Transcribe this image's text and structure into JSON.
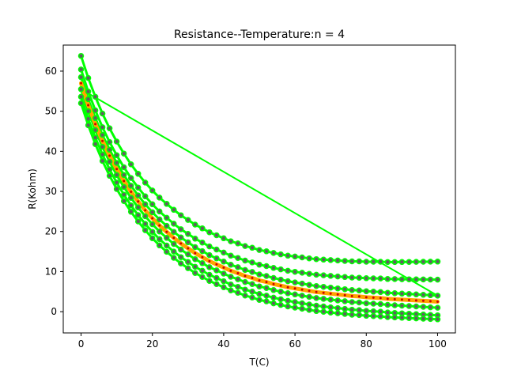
{
  "chart_data": {
    "type": "line",
    "title": "Resistance--Temperature:n = 4",
    "xlabel": "T(C)",
    "ylabel": "R(Kohm)",
    "xlim": [
      -5,
      105
    ],
    "ylim": [
      -5.3,
      66.5
    ],
    "xticks": [
      0,
      20,
      40,
      60,
      80,
      100
    ],
    "yticks": [
      0,
      10,
      20,
      30,
      40,
      50,
      60
    ],
    "grid": false,
    "legend": "none",
    "x": [
      0,
      2,
      4,
      6,
      8,
      10,
      12,
      14,
      16,
      18,
      20,
      22,
      24,
      26,
      28,
      30,
      32,
      34,
      36,
      38,
      40,
      42,
      44,
      46,
      48,
      50,
      52,
      54,
      56,
      58,
      60,
      62,
      64,
      66,
      68,
      70,
      72,
      74,
      76,
      78,
      80,
      82,
      84,
      86,
      88,
      90,
      92,
      94,
      96,
      98,
      100
    ],
    "central_values": [
      57.0,
      51.5,
      46.8,
      42.6,
      38.9,
      35.6,
      32.6,
      29.9,
      27.5,
      25.3,
      23.3,
      21.5,
      19.9,
      18.4,
      17.0,
      15.8,
      14.6,
      13.6,
      12.6,
      11.8,
      11.0,
      10.2,
      9.6,
      8.9,
      8.4,
      7.8,
      7.4,
      6.9,
      6.5,
      6.1,
      5.8,
      5.5,
      5.2,
      4.9,
      4.7,
      4.5,
      4.3,
      4.1,
      3.9,
      3.8,
      3.6,
      3.5,
      3.4,
      3.2,
      3.1,
      3.0,
      2.9,
      2.8,
      2.7,
      2.6,
      2.5
    ],
    "curve_offsets": [
      {
        "start": 6.8,
        "end": 10.0
      },
      {
        "start": 3.4,
        "end": 5.5
      },
      {
        "start": 1.5,
        "end": 1.5
      },
      {
        "start": -1.5,
        "end": -1.5
      },
      {
        "start": -3.4,
        "end": -3.4
      },
      {
        "start": -5.0,
        "end": -4.4
      }
    ],
    "colors": {
      "band": "#00ff00",
      "central": "#ffa500",
      "marker_fill": "#606060",
      "marker_edge": "#00ff00",
      "central_marker": "#cc0000",
      "axes": "#000000"
    }
  }
}
